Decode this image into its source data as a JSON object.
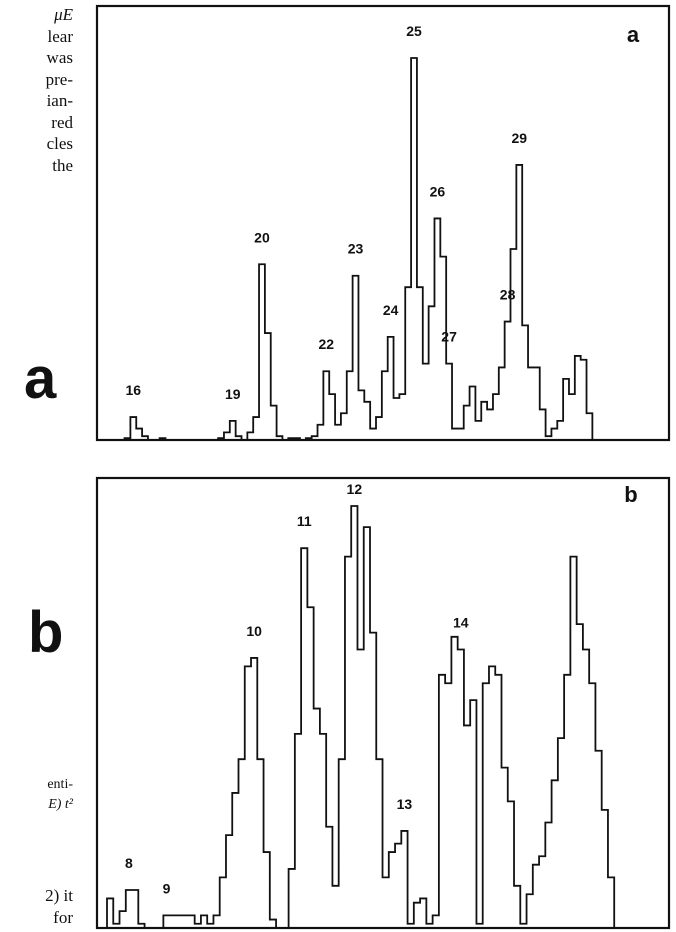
{
  "left_column": {
    "top_fragments": [
      "μE",
      "lear",
      "was",
      "pre-",
      "ian-",
      "red",
      "cles",
      "the"
    ],
    "mid_letter_a": "a",
    "mid_letter_b": "b",
    "caption_fragments": [
      "enti-",
      "E) t²"
    ],
    "bottom_fragments": [
      "2) it",
      "for"
    ]
  },
  "chart_data": [
    {
      "type": "histogram",
      "panel_label": "a",
      "peak_labels": [
        {
          "label": "16",
          "bin": 3
        },
        {
          "label": "19",
          "bin": 21
        },
        {
          "label": "20",
          "bin": 25
        },
        {
          "label": "22",
          "bin": 36
        },
        {
          "label": "23",
          "bin": 40
        },
        {
          "label": "24",
          "bin": 47
        },
        {
          "label": "25",
          "bin": 51
        },
        {
          "label": "26",
          "bin": 56
        },
        {
          "label": "27",
          "bin": 60
        },
        {
          "label": "28",
          "bin": 65
        },
        {
          "label": "29",
          "bin": 70
        }
      ],
      "counts": [
        0,
        0,
        0,
        0.5,
        6,
        3,
        1,
        0,
        0,
        0.5,
        0,
        0,
        0,
        0,
        0,
        0,
        0,
        0,
        0,
        0.5,
        2,
        5,
        1,
        0,
        2,
        6,
        46,
        28,
        9,
        1,
        0,
        0.5,
        0.5,
        0,
        0.5,
        1,
        4,
        18,
        12,
        4,
        7,
        18,
        43,
        13,
        10,
        3,
        6,
        18,
        27,
        11,
        12,
        40,
        100,
        40,
        20,
        35,
        58,
        48,
        20,
        3,
        3,
        9,
        14,
        5,
        10,
        8,
        12,
        19,
        31,
        50,
        72,
        30,
        19,
        19,
        8,
        1,
        3,
        5,
        16,
        12,
        22,
        21,
        7,
        0,
        0,
        0,
        0,
        0,
        0,
        0,
        0,
        0
      ]
    },
    {
      "type": "histogram",
      "panel_label": "b",
      "peak_labels": [
        {
          "label": "8",
          "bin": 3
        },
        {
          "label": "9",
          "bin": 11
        },
        {
          "label": "10",
          "bin": 20
        },
        {
          "label": "11",
          "bin": 29
        },
        {
          "label": "12",
          "bin": 39
        },
        {
          "label": "13",
          "bin": 49
        },
        {
          "label": "14",
          "bin": 58
        }
      ],
      "counts": [
        7,
        1,
        4,
        9,
        9,
        1,
        0,
        0,
        0,
        3,
        3,
        3,
        3,
        3,
        1,
        3,
        1,
        3,
        12,
        22,
        32,
        40,
        62,
        64,
        40,
        18,
        2,
        0,
        0,
        14,
        46,
        90,
        76,
        52,
        46,
        24,
        10,
        40,
        88,
        100,
        66,
        95,
        70,
        40,
        12,
        18,
        20,
        23,
        1,
        6,
        7,
        1,
        3,
        60,
        58,
        69,
        66,
        48,
        54,
        1,
        58,
        62,
        60,
        38,
        30,
        10,
        1,
        8,
        15,
        17,
        25,
        35,
        45,
        60,
        88,
        72,
        66,
        58,
        42,
        28,
        12,
        0,
        0,
        0
      ]
    }
  ]
}
